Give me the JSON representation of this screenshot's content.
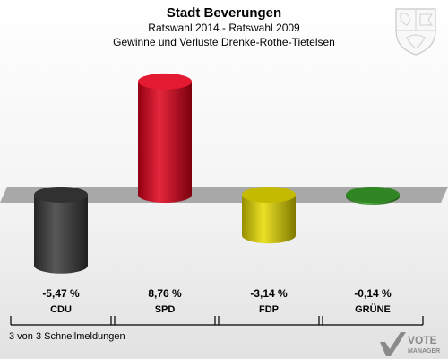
{
  "header": {
    "title": "Stadt Beverungen",
    "subtitle1": "Ratswahl 2014 - Ratswahl 2009",
    "subtitle2": "Gewinne und Verluste Drenke-Rothe-Tietelsen"
  },
  "footer": {
    "note": "3 von 3 Schnellmeldungen"
  },
  "logo": {
    "line1": "VOTE",
    "line2": "MANAGER"
  },
  "chart_data": {
    "type": "bar",
    "categories": [
      "CDU",
      "SPD",
      "FDP",
      "GRÜNE"
    ],
    "values": [
      -5.47,
      8.76,
      -3.14,
      -0.14
    ],
    "value_labels": [
      "-5,47 %",
      "8,76 %",
      "-3,14 %",
      "-0,14 %"
    ],
    "colors": [
      "#3a3a3a",
      "#e0001a",
      "#e6dc00",
      "#3a9e2a"
    ],
    "baseline": 0,
    "grid": false,
    "legend": "none"
  }
}
